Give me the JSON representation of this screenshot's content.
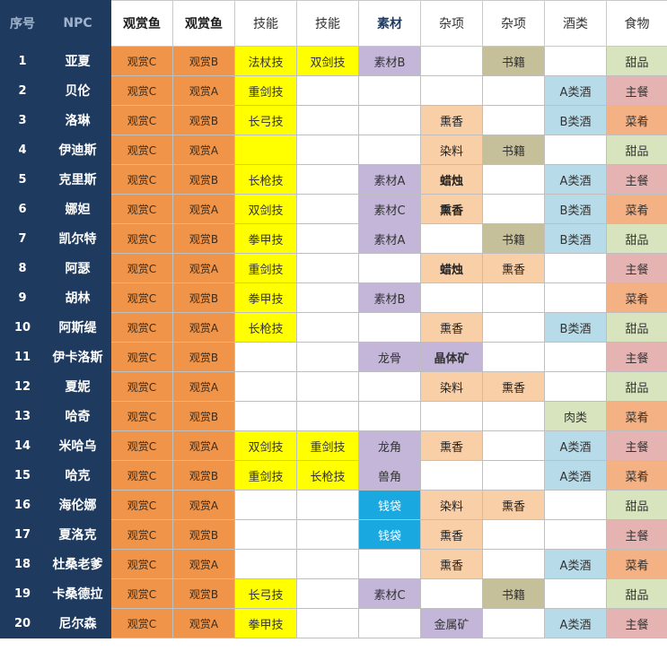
{
  "headers": [
    "序号",
    "NPC",
    "观赏鱼",
    "观赏鱼",
    "技能",
    "技能",
    "素材",
    "杂项",
    "杂项",
    "酒类",
    "食物"
  ],
  "colors": {
    "C": "fish",
    "B": "fish",
    "A": "fish",
    "Y": "c-yellow",
    "P": "c-purple",
    "E": "c-peach",
    "K": "c-khaki",
    "L": "c-lightblue",
    "Q": "c-cyan",
    "G": "c-green",
    "R": "c-pink",
    "T": "c-tan",
    "W": "c-white"
  },
  "rows": [
    {
      "idx": "1",
      "npc": "亚夏",
      "cells": [
        [
          "观赏C",
          "fish"
        ],
        [
          "观赏B",
          "fish"
        ],
        [
          "法杖技",
          "Y"
        ],
        [
          "双剑技",
          "Y"
        ],
        [
          "素材B",
          "P"
        ],
        [
          "",
          "W"
        ],
        [
          "书籍",
          "K"
        ],
        [
          "",
          "W"
        ],
        [
          "甜品",
          "G"
        ]
      ]
    },
    {
      "idx": "2",
      "npc": "贝伦",
      "cells": [
        [
          "观赏C",
          "fish"
        ],
        [
          "观赏A",
          "fish"
        ],
        [
          "重剑技",
          "Y"
        ],
        [
          "",
          "W"
        ],
        [
          "",
          "W"
        ],
        [
          "",
          "W"
        ],
        [
          "",
          "W"
        ],
        [
          "A类酒",
          "L"
        ],
        [
          "主餐",
          "R"
        ]
      ]
    },
    {
      "idx": "3",
      "npc": "洛琳",
      "cells": [
        [
          "观赏C",
          "fish"
        ],
        [
          "观赏B",
          "fish"
        ],
        [
          "长弓技",
          "Y"
        ],
        [
          "",
          "W"
        ],
        [
          "",
          "W"
        ],
        [
          "熏香",
          "E"
        ],
        [
          "",
          "W"
        ],
        [
          "B类酒",
          "L"
        ],
        [
          "菜肴",
          "T"
        ]
      ]
    },
    {
      "idx": "4",
      "npc": "伊迪斯",
      "cells": [
        [
          "观赏C",
          "fish"
        ],
        [
          "观赏A",
          "fish"
        ],
        [
          "",
          "Y"
        ],
        [
          "",
          "W"
        ],
        [
          "",
          "W"
        ],
        [
          "染料",
          "E"
        ],
        [
          "书籍",
          "K"
        ],
        [
          "",
          "W"
        ],
        [
          "甜品",
          "G"
        ]
      ]
    },
    {
      "idx": "5",
      "npc": "克里斯",
      "cells": [
        [
          "观赏C",
          "fish"
        ],
        [
          "观赏B",
          "fish"
        ],
        [
          "长枪技",
          "Y"
        ],
        [
          "",
          "W"
        ],
        [
          "素材A",
          "P"
        ],
        [
          "蜡烛",
          "Eb"
        ],
        [
          "",
          "W"
        ],
        [
          "A类酒",
          "L"
        ],
        [
          "主餐",
          "R"
        ]
      ]
    },
    {
      "idx": "6",
      "npc": "娜妲",
      "cells": [
        [
          "观赏C",
          "fish"
        ],
        [
          "观赏A",
          "fish"
        ],
        [
          "双剑技",
          "Y"
        ],
        [
          "",
          "W"
        ],
        [
          "素材C",
          "P"
        ],
        [
          "熏香",
          "Eb"
        ],
        [
          "",
          "W"
        ],
        [
          "B类酒",
          "L"
        ],
        [
          "菜肴",
          "T"
        ]
      ]
    },
    {
      "idx": "7",
      "npc": "凯尔特",
      "cells": [
        [
          "观赏C",
          "fish"
        ],
        [
          "观赏B",
          "fish"
        ],
        [
          "拳甲技",
          "Y"
        ],
        [
          "",
          "W"
        ],
        [
          "素材A",
          "P"
        ],
        [
          "",
          "W"
        ],
        [
          "书籍",
          "K"
        ],
        [
          "B类酒",
          "L"
        ],
        [
          "甜品",
          "G"
        ]
      ]
    },
    {
      "idx": "8",
      "npc": "阿瑟",
      "cells": [
        [
          "观赏C",
          "fish"
        ],
        [
          "观赏A",
          "fish"
        ],
        [
          "重剑技",
          "Y"
        ],
        [
          "",
          "W"
        ],
        [
          "",
          "W"
        ],
        [
          "蜡烛",
          "Eb"
        ],
        [
          "熏香",
          "E"
        ],
        [
          "",
          "W"
        ],
        [
          "主餐",
          "R"
        ]
      ]
    },
    {
      "idx": "9",
      "npc": "胡林",
      "cells": [
        [
          "观赏C",
          "fish"
        ],
        [
          "观赏B",
          "fish"
        ],
        [
          "拳甲技",
          "Y"
        ],
        [
          "",
          "W"
        ],
        [
          "素材B",
          "P"
        ],
        [
          "",
          "W"
        ],
        [
          "",
          "W"
        ],
        [
          "",
          "W"
        ],
        [
          "菜肴",
          "T"
        ]
      ]
    },
    {
      "idx": "10",
      "npc": "阿斯缇",
      "cells": [
        [
          "观赏C",
          "fish"
        ],
        [
          "观赏A",
          "fish"
        ],
        [
          "长枪技",
          "Y"
        ],
        [
          "",
          "W"
        ],
        [
          "",
          "W"
        ],
        [
          "熏香",
          "E"
        ],
        [
          "",
          "W"
        ],
        [
          "B类酒",
          "L"
        ],
        [
          "甜品",
          "G"
        ]
      ]
    },
    {
      "idx": "11",
      "npc": "伊卡洛斯",
      "cells": [
        [
          "观赏C",
          "fish"
        ],
        [
          "观赏B",
          "fish"
        ],
        [
          "",
          "W"
        ],
        [
          "",
          "W"
        ],
        [
          "龙骨",
          "P"
        ],
        [
          "晶体矿",
          "Pb"
        ],
        [
          "",
          "W"
        ],
        [
          "",
          "W"
        ],
        [
          "主餐",
          "R"
        ]
      ]
    },
    {
      "idx": "12",
      "npc": "夏妮",
      "cells": [
        [
          "观赏C",
          "fish"
        ],
        [
          "观赏A",
          "fish"
        ],
        [
          "",
          "W"
        ],
        [
          "",
          "W"
        ],
        [
          "",
          "W"
        ],
        [
          "染料",
          "E"
        ],
        [
          "熏香",
          "E"
        ],
        [
          "",
          "W"
        ],
        [
          "甜品",
          "G"
        ]
      ]
    },
    {
      "idx": "13",
      "npc": "哈奇",
      "cells": [
        [
          "观赏C",
          "fish"
        ],
        [
          "观赏B",
          "fish"
        ],
        [
          "",
          "W"
        ],
        [
          "",
          "W"
        ],
        [
          "",
          "W"
        ],
        [
          "",
          "W"
        ],
        [
          "",
          "W"
        ],
        [
          "肉类",
          "G"
        ],
        [
          "菜肴",
          "T"
        ]
      ]
    },
    {
      "idx": "14",
      "npc": "米哈乌",
      "cells": [
        [
          "观赏C",
          "fish"
        ],
        [
          "观赏A",
          "fish"
        ],
        [
          "双剑技",
          "Y"
        ],
        [
          "重剑技",
          "Y"
        ],
        [
          "龙角",
          "P"
        ],
        [
          "熏香",
          "E"
        ],
        [
          "",
          "W"
        ],
        [
          "A类酒",
          "L"
        ],
        [
          "主餐",
          "R"
        ]
      ]
    },
    {
      "idx": "15",
      "npc": "哈克",
      "cells": [
        [
          "观赏C",
          "fish"
        ],
        [
          "观赏B",
          "fish"
        ],
        [
          "重剑技",
          "Y"
        ],
        [
          "长枪技",
          "Y"
        ],
        [
          "兽角",
          "P"
        ],
        [
          "",
          "W"
        ],
        [
          "",
          "W"
        ],
        [
          "A类酒",
          "L"
        ],
        [
          "菜肴",
          "T"
        ]
      ]
    },
    {
      "idx": "16",
      "npc": "海伦娜",
      "cells": [
        [
          "观赏C",
          "fish"
        ],
        [
          "观赏A",
          "fish"
        ],
        [
          "",
          "W"
        ],
        [
          "",
          "W"
        ],
        [
          "钱袋",
          "Q"
        ],
        [
          "染料",
          "E"
        ],
        [
          "熏香",
          "E"
        ],
        [
          "",
          "W"
        ],
        [
          "甜品",
          "G"
        ]
      ]
    },
    {
      "idx": "17",
      "npc": "夏洛克",
      "cells": [
        [
          "观赏C",
          "fish"
        ],
        [
          "观赏B",
          "fish"
        ],
        [
          "",
          "W"
        ],
        [
          "",
          "W"
        ],
        [
          "钱袋",
          "Q"
        ],
        [
          "熏香",
          "E"
        ],
        [
          "",
          "W"
        ],
        [
          "",
          "W"
        ],
        [
          "主餐",
          "R"
        ]
      ]
    },
    {
      "idx": "18",
      "npc": "杜桑老爹",
      "cells": [
        [
          "观赏C",
          "fish"
        ],
        [
          "观赏A",
          "fish"
        ],
        [
          "",
          "W"
        ],
        [
          "",
          "W"
        ],
        [
          "",
          "W"
        ],
        [
          "熏香",
          "E"
        ],
        [
          "",
          "W"
        ],
        [
          "A类酒",
          "L"
        ],
        [
          "菜肴",
          "T"
        ]
      ]
    },
    {
      "idx": "19",
      "npc": "卡桑德拉",
      "cells": [
        [
          "观赏C",
          "fish"
        ],
        [
          "观赏B",
          "fish"
        ],
        [
          "长弓技",
          "Y"
        ],
        [
          "",
          "W"
        ],
        [
          "素材C",
          "P"
        ],
        [
          "",
          "W"
        ],
        [
          "书籍",
          "K"
        ],
        [
          "",
          "W"
        ],
        [
          "甜品",
          "G"
        ]
      ]
    },
    {
      "idx": "20",
      "npc": "尼尔森",
      "cells": [
        [
          "观赏C",
          "fish"
        ],
        [
          "观赏A",
          "fish"
        ],
        [
          "拳甲技",
          "Y"
        ],
        [
          "",
          "W"
        ],
        [
          "",
          "W"
        ],
        [
          "金属矿",
          "P"
        ],
        [
          "",
          "W"
        ],
        [
          "A类酒",
          "L"
        ],
        [
          "主餐",
          "R"
        ]
      ]
    }
  ]
}
